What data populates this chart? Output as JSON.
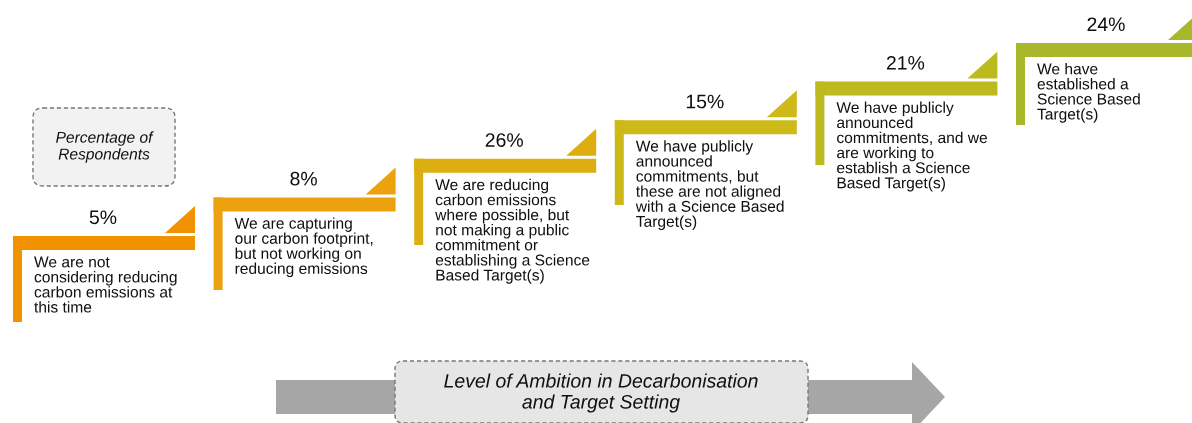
{
  "chart_data": {
    "type": "other",
    "categories": [
      "We are not\nconsidering reducing\ncarbon emissions at\nthis time",
      "We are capturing\nour carbon footprint,\nbut not working on\nreducing emissions",
      "We are reducing\ncarbon emissions\nwhere possible, but\nnot making a public\ncommitment or\nestablishing a Science\nBased Target(s)",
      "We have publicly\nannounced\ncommitments, but\nthese are not aligned\nwith a Science Based\nTarget(s)",
      "We have publicly\nannounced\ncommitments, and we\nare working to\nestablish a Science\nBased Target(s)",
      "We have\nestablished a\nScience Based\nTarget(s)"
    ],
    "values": [
      5,
      8,
      26,
      15,
      21,
      24
    ],
    "value_labels": [
      "5%",
      "8%",
      "26%",
      "15%",
      "21%",
      "24%"
    ],
    "colors": [
      "#f39200",
      "#eca20e",
      "#dcae12",
      "#cdb917",
      "#bcba1f",
      "#a9b82a"
    ],
    "annotations": [
      "Percentage of\nRespondents",
      "Level of Ambition in Decarbonisation\nand Target Setting"
    ]
  }
}
